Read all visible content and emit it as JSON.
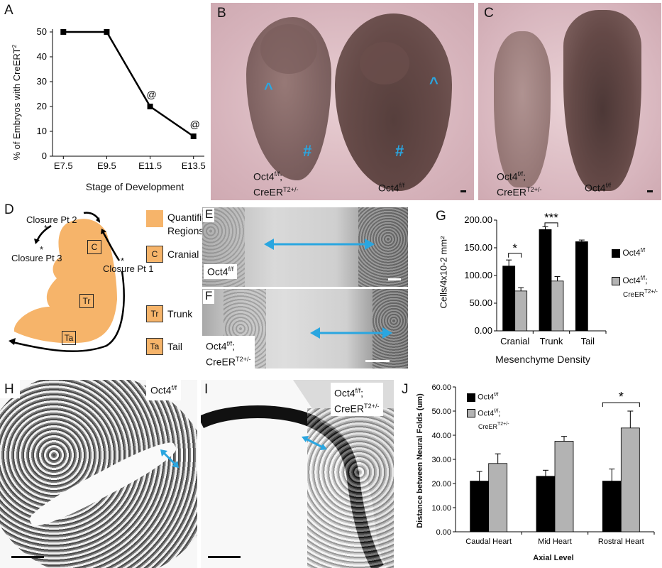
{
  "panels": {
    "A": "A",
    "B": "B",
    "C": "C",
    "D": "D",
    "E": "E",
    "F": "F",
    "G": "G",
    "H": "H",
    "I": "I",
    "J": "J"
  },
  "panelA": {
    "ylabel_main": "% of Embryos with CreERT",
    "ylabel_sup": "2",
    "xlabel": "Stage of Development",
    "annotation": "@"
  },
  "photo_labels": {
    "b_left_line1": "Oct4",
    "b_left_line1_sup": "f/f",
    "b_left_line1_tail": ";",
    "b_left_line2": "CreER",
    "b_left_line2_sup": "T2+/-",
    "b_right": "Oct4",
    "b_right_sup": "f/f",
    "c_left_line1": "Oct4",
    "c_left_line1_sup": "f/f",
    "c_left_line1_tail": ";",
    "c_left_line2": "CreER",
    "c_left_line2_sup": "T2+/-",
    "c_right": "Oct4",
    "c_right_sup": "f/f",
    "caret": "^",
    "hash": "#",
    "e_label": "Oct4",
    "e_label_sup": "f/f",
    "f_label_line1": "Oct4",
    "f_label_line1_sup": "f/f",
    "f_label_line1_tail": ";",
    "f_label_line2": "CreER",
    "f_label_line2_sup": "T2+/-",
    "h_label": "Oct4",
    "h_label_sup": "f/f",
    "i_label_line1": "Oct4",
    "i_label_line1_sup": "f/f",
    "i_label_line1_tail": ";",
    "i_label_line2": "CreER",
    "i_label_line2_sup": "T2+/-"
  },
  "panelD": {
    "closure1": "Closure Pt 1",
    "closure2": "Closure Pt 2",
    "closure3": "Closure Pt 3",
    "star": "*",
    "legend_quantified": "Quantified Regions",
    "legend_quantified_l1": "Quantified",
    "legend_quantified_l2": "Regions",
    "legend_c": "Cranial",
    "legend_tr": "Trunk",
    "legend_ta": "Tail",
    "box_c": "C",
    "box_tr": "Tr",
    "box_ta": "Ta"
  },
  "panelG": {
    "ylabel": "Cells/4x10-2 mm²",
    "xlabel": "Mesenchyme Density",
    "legend1": "Oct4",
    "legend1_sup": "f/f",
    "legend2_l1": "Oct4",
    "legend2_l1_sup": "f/f",
    "legend2_l1_tail": ";",
    "legend2_l2": "CreER",
    "legend2_l2_sup": "T2+/-",
    "sig1": "*",
    "sig2": "***"
  },
  "panelJ": {
    "ylabel": "Distance between Neural Folds (um)",
    "xlabel": "Axial Level",
    "legend1": "Oct4",
    "legend1_sup": "f/f",
    "legend2_l1": "Oct4",
    "legend2_l1_sup": "f/f",
    "legend2_l1_tail": ";",
    "legend2_l2": "CreER",
    "legend2_l2_sup": "T2+/-",
    "sig": "*"
  },
  "colors": {
    "dark_bar": "#000000",
    "light_bar": "#b3b3b3",
    "cyan": "#2aa6e0",
    "orange": "#f6b46a"
  },
  "chart_data": [
    {
      "id": "A",
      "type": "line",
      "x": [
        "E7.5",
        "E9.5",
        "E11.5",
        "E13.5"
      ],
      "values": [
        50,
        50,
        20,
        8
      ],
      "ylim": [
        0,
        50
      ],
      "yticks": [
        "0",
        "10",
        "20",
        "30",
        "40",
        "50"
      ],
      "annotations": [
        "",
        "",
        "@",
        "@"
      ]
    },
    {
      "id": "G",
      "type": "bar",
      "categories": [
        "Cranial",
        "Trunk",
        "Tail"
      ],
      "series": [
        {
          "name": "Oct4f/f",
          "values": [
            117,
            183,
            161
          ],
          "errors": [
            11,
            5,
            3
          ]
        },
        {
          "name": "Oct4f/f; CreERT2+/-",
          "values": [
            72,
            90,
            0
          ],
          "errors": [
            6,
            8,
            0
          ]
        }
      ],
      "ylim": [
        0,
        200
      ],
      "yticks": [
        "0.00",
        "50.00",
        "100.00",
        "150.00",
        "200.00"
      ]
    },
    {
      "id": "J",
      "type": "bar",
      "categories": [
        "Caudal Heart",
        "Mid Heart",
        "Rostral Heart"
      ],
      "series": [
        {
          "name": "Oct4f/f",
          "values": [
            21,
            23,
            21
          ],
          "errors": [
            4,
            2.5,
            5
          ]
        },
        {
          "name": "Oct4f/f; CreERT2+/-",
          "values": [
            28.3,
            37.5,
            43
          ],
          "errors": [
            4,
            2,
            7
          ]
        }
      ],
      "ylim": [
        0,
        60
      ],
      "yticks": [
        "0.00",
        "10.00",
        "20.00",
        "30.00",
        "40.00",
        "50.00",
        "60.00"
      ]
    }
  ]
}
